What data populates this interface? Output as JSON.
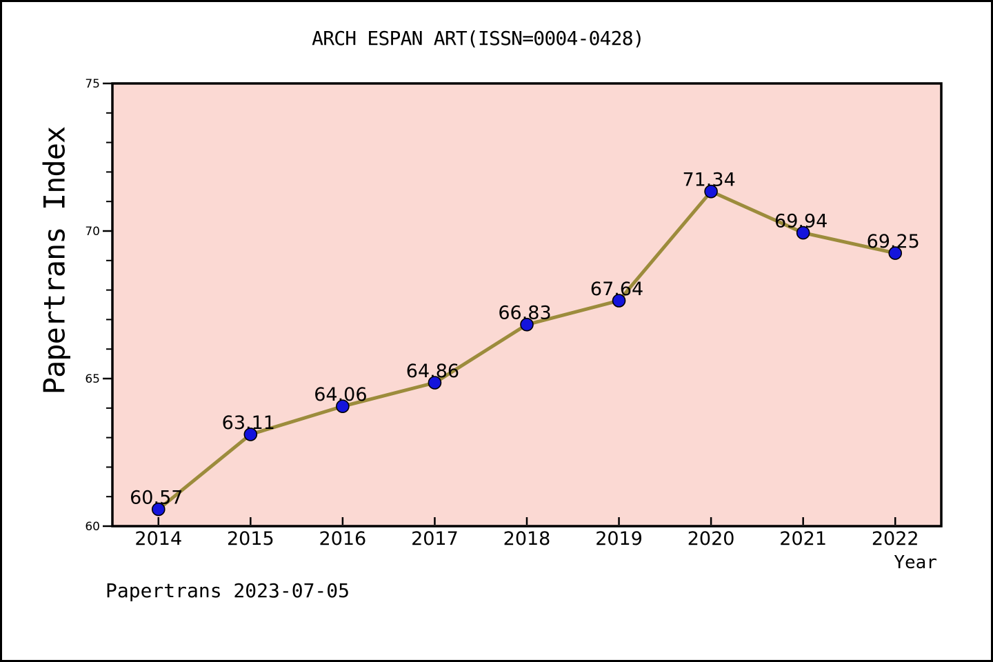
{
  "title": "ARCH ESPAN ART(ISSN=0004-0428)",
  "footer": "Papertrans 2023-07-05",
  "chart_data": {
    "type": "line",
    "title": "ARCH ESPAN ART(ISSN=0004-0428)",
    "xlabel": "Year",
    "ylabel": "Papertrans Index",
    "categories": [
      "2014",
      "2015",
      "2016",
      "2017",
      "2018",
      "2019",
      "2020",
      "2021",
      "2022"
    ],
    "series": [
      {
        "name": "Papertrans Index",
        "values": [
          60.57,
          63.11,
          64.06,
          64.86,
          66.83,
          67.64,
          71.34,
          69.94,
          69.25
        ]
      }
    ],
    "point_labels": [
      "60.57",
      "63.11",
      "64.06",
      "64.86",
      "66.83",
      "67.64",
      "71.34",
      "69.94",
      "69.25"
    ],
    "ylim": [
      60,
      75
    ],
    "y_major_ticks": [
      60,
      65,
      70,
      75
    ],
    "y_minor_step": 1,
    "grid": false,
    "legend": "none",
    "colors": {
      "plot_bg": "#fbd9d3",
      "line": "#9c8c3c",
      "marker": "#1414dc",
      "marker_edge": "#000000",
      "frame": "#000000",
      "text": "#000000"
    }
  }
}
